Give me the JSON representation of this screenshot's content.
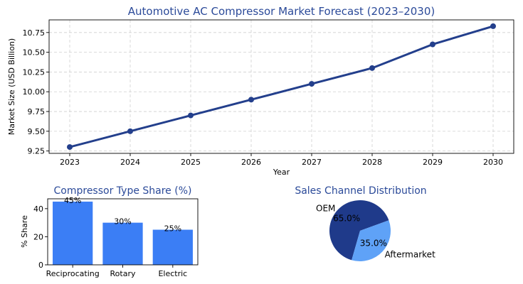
{
  "chart_data": [
    {
      "type": "line",
      "title": "Automotive AC Compressor Market Forecast (2023–2030)",
      "xlabel": "Year",
      "ylabel": "Market Size (USD Billion)",
      "x": [
        2023,
        2024,
        2025,
        2026,
        2027,
        2028,
        2029,
        2030
      ],
      "series": [
        {
          "values": [
            9.3,
            9.5,
            9.7,
            9.9,
            10.1,
            10.3,
            10.6,
            10.83
          ]
        }
      ],
      "xticks": [
        "2023",
        "2024",
        "2025",
        "2026",
        "2027",
        "2028",
        "2029",
        "2030"
      ],
      "yticks": [
        "9.25",
        "9.50",
        "9.75",
        "10.00",
        "10.25",
        "10.50",
        "10.75"
      ],
      "ylim": [
        9.22,
        10.91
      ],
      "grid": true,
      "color": "#233f8c"
    },
    {
      "type": "bar",
      "title": "Compressor Type Share (%)",
      "ylabel": "% Share",
      "categories": [
        "Reciprocating",
        "Rotary",
        "Electric"
      ],
      "values": [
        45,
        30,
        25
      ],
      "data_labels": [
        "45%",
        "30%",
        "25%"
      ],
      "yticks": [
        "0",
        "20",
        "40"
      ],
      "ylim": [
        0,
        47
      ],
      "color": "#3b7ef5"
    },
    {
      "type": "pie",
      "title": "Sales Channel Distribution",
      "labels": [
        "OEM",
        "Aftermarket"
      ],
      "values": [
        65,
        35
      ],
      "pct_labels": [
        "65.0%",
        "35.0%"
      ],
      "colors": [
        "#1f3a8a",
        "#5fa2f7"
      ]
    }
  ]
}
